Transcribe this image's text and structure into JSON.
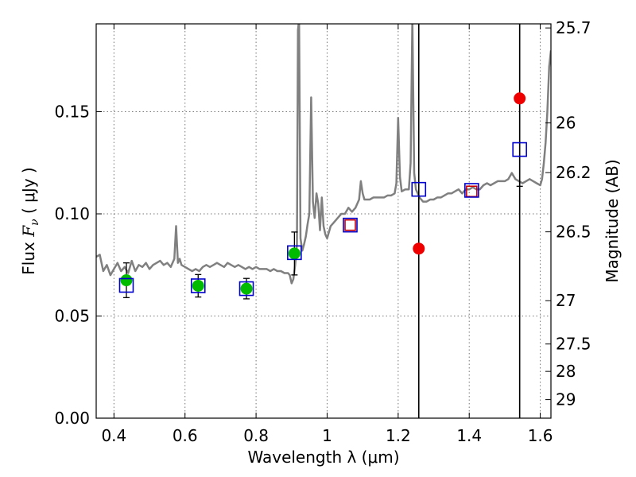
{
  "chart_data": {
    "type": "scatter",
    "xlabel": "Wavelength  λ (μm)",
    "ylabel": "Flux  F_ν  ( μJy )",
    "ylabel_parts": {
      "prefix": "Flux ",
      "symbol": "F",
      "subscript": "ν",
      "suffix": " ( μJy )"
    },
    "y2label": "Magnitude (AB)",
    "xlim": [
      0.35,
      1.63
    ],
    "ylim": [
      0.0,
      0.193
    ],
    "grid": true,
    "x_ticks": [
      {
        "value": 0.4,
        "label": "0.4"
      },
      {
        "value": 0.6,
        "label": "0.6"
      },
      {
        "value": 0.8,
        "label": "0.8"
      },
      {
        "value": 1.0,
        "label": "1"
      },
      {
        "value": 1.2,
        "label": "1.2"
      },
      {
        "value": 1.4,
        "label": "1.4"
      },
      {
        "value": 1.6,
        "label": "1.6"
      }
    ],
    "y_ticks": [
      {
        "value": 0.0,
        "label": "0.00"
      },
      {
        "value": 0.05,
        "label": "0.05"
      },
      {
        "value": 0.1,
        "label": "0.10"
      },
      {
        "value": 0.15,
        "label": "0.15"
      }
    ],
    "y2_ticks": [
      {
        "flux": 0.191,
        "label": "25.7"
      },
      {
        "flux": 0.1445,
        "label": "26"
      },
      {
        "flux": 0.1202,
        "label": "26.2"
      },
      {
        "flux": 0.0912,
        "label": "26.5"
      },
      {
        "flux": 0.0575,
        "label": "27"
      },
      {
        "flux": 0.0363,
        "label": "27.5"
      },
      {
        "flux": 0.0229,
        "label": "28"
      },
      {
        "flux": 0.0091,
        "label": "29"
      }
    ],
    "series": [
      {
        "kind": "line",
        "color": "#808080",
        "x": [
          0.35,
          0.36,
          0.37,
          0.38,
          0.39,
          0.4,
          0.41,
          0.42,
          0.43,
          0.44,
          0.45,
          0.46,
          0.47,
          0.48,
          0.49,
          0.5,
          0.51,
          0.52,
          0.53,
          0.54,
          0.55,
          0.56,
          0.57,
          0.575,
          0.58,
          0.585,
          0.59,
          0.6,
          0.61,
          0.62,
          0.63,
          0.64,
          0.65,
          0.66,
          0.67,
          0.68,
          0.69,
          0.7,
          0.71,
          0.72,
          0.73,
          0.74,
          0.75,
          0.76,
          0.77,
          0.78,
          0.79,
          0.8,
          0.81,
          0.82,
          0.83,
          0.84,
          0.85,
          0.86,
          0.87,
          0.88,
          0.89,
          0.895,
          0.9,
          0.905,
          0.91,
          0.915,
          0.918,
          0.921,
          0.925,
          0.93,
          0.935,
          0.94,
          0.945,
          0.95,
          0.955,
          0.96,
          0.965,
          0.97,
          0.975,
          0.98,
          0.985,
          0.99,
          0.995,
          1.0,
          1.01,
          1.02,
          1.03,
          1.04,
          1.05,
          1.06,
          1.07,
          1.08,
          1.09,
          1.095,
          1.1,
          1.105,
          1.11,
          1.12,
          1.13,
          1.14,
          1.15,
          1.16,
          1.17,
          1.18,
          1.19,
          1.195,
          1.2,
          1.205,
          1.21,
          1.22,
          1.23,
          1.235,
          1.24,
          1.245,
          1.25,
          1.26,
          1.27,
          1.28,
          1.29,
          1.3,
          1.31,
          1.32,
          1.33,
          1.34,
          1.35,
          1.36,
          1.37,
          1.38,
          1.39,
          1.4,
          1.41,
          1.42,
          1.43,
          1.44,
          1.45,
          1.46,
          1.47,
          1.48,
          1.49,
          1.5,
          1.51,
          1.52,
          1.53,
          1.54,
          1.55,
          1.56,
          1.57,
          1.58,
          1.59,
          1.6,
          1.605,
          1.61,
          1.615,
          1.62,
          1.625,
          1.63
        ],
        "y": [
          0.079,
          0.08,
          0.072,
          0.075,
          0.07,
          0.073,
          0.076,
          0.072,
          0.074,
          0.071,
          0.077,
          0.072,
          0.075,
          0.074,
          0.076,
          0.073,
          0.075,
          0.076,
          0.077,
          0.075,
          0.076,
          0.074,
          0.078,
          0.094,
          0.076,
          0.078,
          0.075,
          0.074,
          0.073,
          0.072,
          0.073,
          0.072,
          0.074,
          0.075,
          0.074,
          0.075,
          0.076,
          0.075,
          0.074,
          0.076,
          0.075,
          0.074,
          0.075,
          0.074,
          0.073,
          0.074,
          0.073,
          0.074,
          0.073,
          0.073,
          0.073,
          0.072,
          0.073,
          0.072,
          0.072,
          0.071,
          0.071,
          0.07,
          0.066,
          0.068,
          0.075,
          0.085,
          0.19,
          0.195,
          0.088,
          0.082,
          0.085,
          0.089,
          0.095,
          0.1,
          0.157,
          0.106,
          0.098,
          0.11,
          0.105,
          0.092,
          0.108,
          0.094,
          0.09,
          0.088,
          0.094,
          0.096,
          0.098,
          0.1,
          0.1,
          0.103,
          0.101,
          0.103,
          0.107,
          0.116,
          0.11,
          0.107,
          0.107,
          0.107,
          0.108,
          0.108,
          0.108,
          0.108,
          0.109,
          0.109,
          0.11,
          0.115,
          0.147,
          0.118,
          0.111,
          0.112,
          0.112,
          0.125,
          0.195,
          0.12,
          0.112,
          0.108,
          0.106,
          0.106,
          0.107,
          0.107,
          0.108,
          0.108,
          0.109,
          0.11,
          0.11,
          0.111,
          0.112,
          0.11,
          0.112,
          0.112,
          0.113,
          0.112,
          0.112,
          0.114,
          0.115,
          0.114,
          0.115,
          0.116,
          0.116,
          0.116,
          0.117,
          0.12,
          0.117,
          0.116,
          0.115,
          0.116,
          0.117,
          0.116,
          0.115,
          0.114,
          0.117,
          0.125,
          0.135,
          0.15,
          0.172,
          0.18
        ]
      },
      {
        "kind": "scatter",
        "marker": "circle",
        "color": "#00bb00",
        "x": [
          0.435,
          0.637,
          0.773,
          0.908
        ],
        "y": [
          0.0675,
          0.0648,
          0.0634,
          0.0806
        ],
        "yerr": [
          0.0085,
          0.0055,
          0.005,
          0.0105
        ]
      },
      {
        "kind": "scatter",
        "marker": "circle",
        "color": "#ee0000",
        "x": [
          1.258,
          1.542
        ],
        "y": [
          0.083,
          0.1565
        ],
        "yerr": [
          null,
          0.043
        ]
      },
      {
        "kind": "scatter",
        "marker": "square-open",
        "color": "#cc0000",
        "x": [
          1.065,
          1.407
        ],
        "y": [
          0.0945,
          0.111
        ]
      },
      {
        "kind": "scatter",
        "marker": "square-open",
        "color": "#0000cc",
        "x": [
          0.435,
          0.637,
          0.773,
          0.908,
          1.065,
          1.258,
          1.407,
          1.542
        ],
        "y": [
          0.065,
          0.0648,
          0.0634,
          0.081,
          0.0945,
          0.112,
          0.1115,
          0.1315
        ]
      }
    ],
    "vlines": [
      {
        "x": 1.258,
        "color": "#000000"
      },
      {
        "x": 1.542,
        "color": "#000000"
      }
    ]
  }
}
